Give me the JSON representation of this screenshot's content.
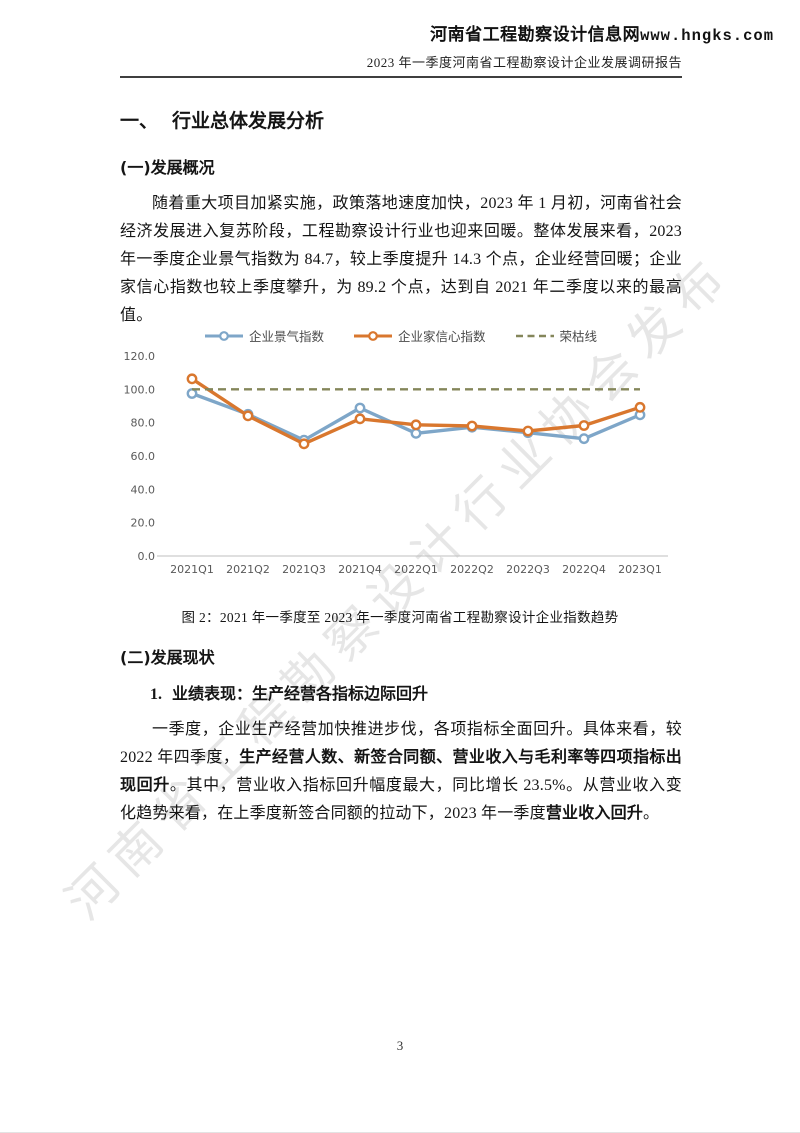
{
  "header": {
    "site_name": "河南省工程勘察设计信息网",
    "site_url": "www.hngks.com",
    "report_title": "2023 年一季度河南省工程勘察设计企业发展调研报告"
  },
  "watermark": {
    "text": "河南省工程勘察设计行业协会发布"
  },
  "sections": {
    "h1_num": "一、",
    "h1_title": "行业总体发展分析",
    "s1_title": "(一)发展概况",
    "p1": "随着重大项目加紧实施，政策落地速度加快，2023 年 1 月初，河南省社会经济发展进入复苏阶段，工程勘察设计行业也迎来回暖。整体发展来看，2023 年一季度企业景气指数为 84.7，较上季度提升 14.3 个点，企业经营回暖；企业家信心指数也较上季度攀升，为 89.2 个点，达到自 2021 年二季度以来的最高值。",
    "figure_caption": "图 2：2021 年一季度至 2023 年一季度河南省工程勘察设计企业指数趋势",
    "s2_title": "(二)发展现状",
    "s2_sub_num": "1.",
    "s2_sub_title": "业绩表现：生产经营各指标边际回升",
    "p2_seg1": "一季度，企业生产经营加快推进步伐，各项指标全面回升。具体来看，较 2022 年四季度，",
    "p2_seg2_bold": "生产经营人数、新签合同额、营业收入与毛利率等四项指标出现回升",
    "p2_seg3": "。其中，营业收入指标回升幅度最大，同比增长 23.5%。从营业收入变化趋势来看，在上季度新签合同额的拉动下，2023 年一季度",
    "p2_seg4_bold": "营业收入回升",
    "p2_seg5": "。"
  },
  "page": {
    "number": "3"
  },
  "chart_data": {
    "type": "line",
    "title": "",
    "categories": [
      "2021Q1",
      "2021Q2",
      "2021Q3",
      "2021Q4",
      "2022Q1",
      "2022Q2",
      "2022Q3",
      "2022Q4",
      "2023Q1"
    ],
    "series": [
      {
        "name": "企业景气指数",
        "color": "#7EA6C8",
        "style": "solid",
        "marker": "circle",
        "values": [
          97.5,
          85.0,
          69.5,
          88.8,
          73.6,
          77.3,
          74.0,
          70.4,
          84.7
        ]
      },
      {
        "name": "企业家信心指数",
        "color": "#D9772E",
        "style": "solid",
        "marker": "circle",
        "values": [
          106.3,
          84.1,
          67.3,
          82.3,
          78.7,
          78.0,
          75.0,
          78.3,
          89.2
        ]
      },
      {
        "name": "荣枯线",
        "color": "#84865A",
        "style": "dashed",
        "marker": "none",
        "values": [
          100,
          100,
          100,
          100,
          100,
          100,
          100,
          100,
          100
        ]
      }
    ],
    "ylim": [
      0,
      120
    ],
    "ytick_step": 20,
    "yticks": [
      "0.0",
      "20.0",
      "40.0",
      "60.0",
      "80.0",
      "100.0",
      "120.0"
    ],
    "legend_position": "top",
    "grid": false,
    "axis_line_color": "#BFBFBF",
    "tick_label_color": "#595959"
  }
}
